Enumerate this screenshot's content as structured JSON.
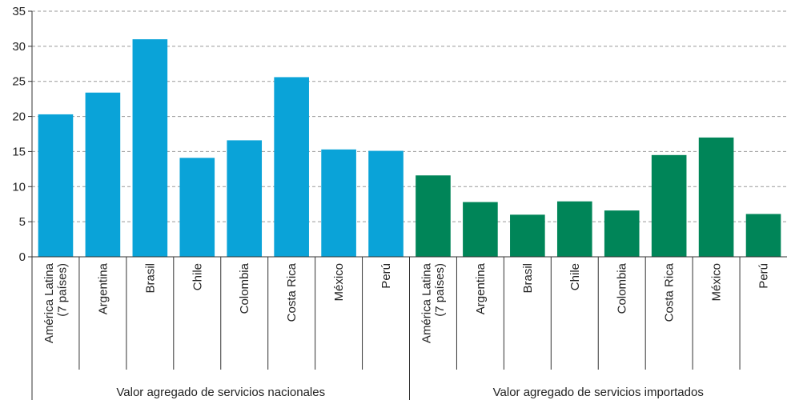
{
  "chart_data": {
    "type": "bar",
    "ylim": [
      0,
      35
    ],
    "yticks": [
      0,
      5,
      10,
      15,
      20,
      25,
      30,
      35
    ],
    "grid": true,
    "groups": [
      {
        "name": "Valor agregado de servicios nacionales",
        "color": "#0aa3d8",
        "categories": [
          "América Latina\n(7 países)",
          "Argentina",
          "Brasil",
          "Chile",
          "Colombia",
          "Costa Rica",
          "México",
          "Perú"
        ],
        "values": [
          20.3,
          23.4,
          31.0,
          14.1,
          16.6,
          25.6,
          15.3,
          15.1
        ]
      },
      {
        "name": "Valor agregado de servicios importados",
        "color": "#008558",
        "categories": [
          "América Latina\n(7 países)",
          "Argentina",
          "Brasil",
          "Chile",
          "Colombia",
          "Costa Rica",
          "México",
          "Perú"
        ],
        "values": [
          11.6,
          7.8,
          6.0,
          7.9,
          6.6,
          14.5,
          17.0,
          6.1
        ]
      }
    ]
  }
}
